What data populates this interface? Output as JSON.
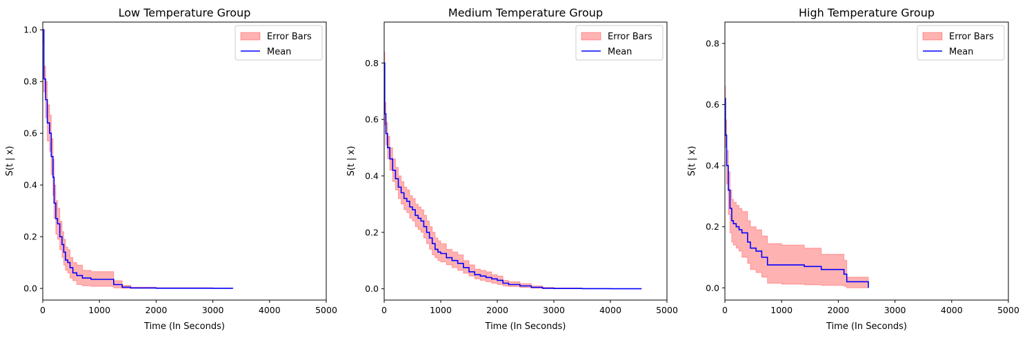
{
  "chart_data": [
    {
      "type": "line",
      "title": "Low Temperature Group",
      "xlabel": "Time (In Seconds)",
      "ylabel": "S(t | x)",
      "xlim": [
        0,
        5000
      ],
      "ylim": [
        -0.045,
        1.03
      ],
      "xticks": [
        0,
        1000,
        2000,
        3000,
        4000,
        5000
      ],
      "yticks": [
        0.0,
        0.2,
        0.4,
        0.6,
        0.8,
        1.0
      ],
      "grid": false,
      "legend": {
        "position": "top-right",
        "entries": [
          "Error Bars",
          "Mean"
        ]
      },
      "series": [
        {
          "name": "Mean",
          "color": "#0000ff",
          "step": true,
          "x": [
            0,
            20,
            50,
            80,
            120,
            150,
            180,
            200,
            230,
            260,
            300,
            340,
            370,
            400,
            440,
            480,
            530,
            600,
            700,
            850,
            1250,
            1400,
            1550,
            2000,
            3000,
            3350
          ],
          "y": [
            1.0,
            0.81,
            0.73,
            0.64,
            0.6,
            0.51,
            0.43,
            0.33,
            0.27,
            0.25,
            0.2,
            0.17,
            0.14,
            0.11,
            0.1,
            0.08,
            0.06,
            0.05,
            0.04,
            0.035,
            0.015,
            0.005,
            0.002,
            0.001,
            0.0005,
            0.0
          ]
        },
        {
          "name": "Error Bars",
          "color": "#ff0000",
          "alpha": 0.3,
          "band": true,
          "x": [
            0,
            20,
            50,
            80,
            120,
            150,
            180,
            200,
            230,
            260,
            300,
            340,
            370,
            400,
            440,
            480,
            530,
            600,
            700,
            850,
            1250,
            1400,
            1550,
            2000,
            3000,
            3350
          ],
          "lower": [
            0.95,
            0.76,
            0.66,
            0.57,
            0.53,
            0.44,
            0.36,
            0.27,
            0.21,
            0.19,
            0.15,
            0.12,
            0.09,
            0.07,
            0.06,
            0.04,
            0.03,
            0.015,
            0.01,
            0.008,
            0.002,
            0.0,
            0.0,
            0.0,
            0.0,
            0.0
          ],
          "upper": [
            1.0,
            0.86,
            0.8,
            0.71,
            0.67,
            0.58,
            0.5,
            0.4,
            0.34,
            0.31,
            0.26,
            0.22,
            0.19,
            0.16,
            0.15,
            0.12,
            0.1,
            0.09,
            0.07,
            0.065,
            0.03,
            0.012,
            0.005,
            0.003,
            0.001,
            0.0
          ]
        }
      ]
    },
    {
      "type": "line",
      "title": "Medium Temperature Group",
      "xlabel": "Time (In Seconds)",
      "ylabel": "S(t | x)",
      "xlim": [
        0,
        5000
      ],
      "ylim": [
        -0.04,
        0.945
      ],
      "xticks": [
        0,
        1000,
        2000,
        3000,
        4000,
        5000
      ],
      "yticks": [
        0.0,
        0.2,
        0.4,
        0.6,
        0.8
      ],
      "grid": false,
      "legend": {
        "position": "top-right",
        "entries": [
          "Error Bars",
          "Mean"
        ]
      },
      "series": [
        {
          "name": "Mean",
          "color": "#0000ff",
          "step": true,
          "x": [
            0,
            10,
            30,
            60,
            100,
            150,
            200,
            250,
            300,
            350,
            400,
            450,
            500,
            550,
            600,
            650,
            700,
            750,
            800,
            850,
            900,
            950,
            1000,
            1100,
            1200,
            1300,
            1400,
            1500,
            1600,
            1700,
            1800,
            1900,
            2000,
            2100,
            2200,
            2400,
            2600,
            2800,
            3000,
            3500,
            4000,
            4550
          ],
          "y": [
            0.8,
            0.62,
            0.55,
            0.5,
            0.46,
            0.42,
            0.39,
            0.36,
            0.34,
            0.32,
            0.31,
            0.29,
            0.28,
            0.26,
            0.25,
            0.24,
            0.22,
            0.2,
            0.18,
            0.16,
            0.14,
            0.13,
            0.125,
            0.11,
            0.1,
            0.09,
            0.075,
            0.06,
            0.05,
            0.045,
            0.04,
            0.035,
            0.03,
            0.02,
            0.015,
            0.01,
            0.005,
            0.002,
            0.001,
            0.0005,
            0.0002,
            0.0
          ]
        },
        {
          "name": "Error Bars",
          "color": "#ff0000",
          "alpha": 0.3,
          "band": true,
          "x": [
            0,
            10,
            30,
            60,
            100,
            150,
            200,
            250,
            300,
            350,
            400,
            450,
            500,
            550,
            600,
            650,
            700,
            750,
            800,
            850,
            900,
            950,
            1000,
            1100,
            1200,
            1300,
            1400,
            1500,
            1600,
            1700,
            1800,
            1900,
            2000,
            2100,
            2200,
            2400,
            2600,
            2800,
            3000,
            3500,
            4000,
            4550
          ],
          "lower": [
            0.76,
            0.58,
            0.51,
            0.46,
            0.42,
            0.38,
            0.35,
            0.32,
            0.3,
            0.28,
            0.27,
            0.25,
            0.24,
            0.22,
            0.21,
            0.2,
            0.18,
            0.16,
            0.14,
            0.12,
            0.11,
            0.1,
            0.095,
            0.085,
            0.075,
            0.065,
            0.055,
            0.045,
            0.035,
            0.03,
            0.025,
            0.02,
            0.015,
            0.01,
            0.008,
            0.005,
            0.002,
            0.0,
            0.0,
            0.0,
            0.0,
            0.0
          ]
        },
        {
          "name": "_upper",
          "band_upper": true,
          "upper": [
            0.84,
            0.66,
            0.59,
            0.54,
            0.5,
            0.46,
            0.43,
            0.4,
            0.38,
            0.36,
            0.35,
            0.33,
            0.32,
            0.3,
            0.29,
            0.28,
            0.26,
            0.24,
            0.22,
            0.2,
            0.18,
            0.17,
            0.16,
            0.14,
            0.13,
            0.12,
            0.1,
            0.085,
            0.07,
            0.065,
            0.06,
            0.05,
            0.045,
            0.03,
            0.025,
            0.018,
            0.01,
            0.005,
            0.003,
            0.001,
            0.0005,
            0.0
          ]
        }
      ]
    },
    {
      "type": "line",
      "title": "High Temperature Group",
      "xlabel": "Time (In Seconds)",
      "ylabel": "S(t | x)",
      "xlim": [
        0,
        5000
      ],
      "ylim": [
        -0.04,
        0.87
      ],
      "xticks": [
        0,
        1000,
        2000,
        3000,
        4000,
        5000
      ],
      "yticks": [
        0.0,
        0.2,
        0.4,
        0.6,
        0.8
      ],
      "grid": false,
      "legend": {
        "position": "top-right",
        "entries": [
          "Error Bars",
          "Mean"
        ]
      },
      "series": [
        {
          "name": "Mean",
          "color": "#0000ff",
          "step": true,
          "x": [
            0,
            10,
            30,
            60,
            90,
            120,
            150,
            200,
            250,
            300,
            400,
            450,
            550,
            650,
            750,
            1000,
            1400,
            1700,
            2100,
            2150,
            2520,
            2530
          ],
          "y": [
            0.62,
            0.5,
            0.4,
            0.32,
            0.26,
            0.22,
            0.21,
            0.2,
            0.19,
            0.18,
            0.15,
            0.13,
            0.12,
            0.1,
            0.075,
            0.075,
            0.07,
            0.06,
            0.045,
            0.02,
            0.02,
            0.0
          ]
        },
        {
          "name": "Error Bars",
          "color": "#ff0000",
          "alpha": 0.3,
          "band": true,
          "x": [
            0,
            10,
            30,
            60,
            90,
            120,
            150,
            200,
            250,
            300,
            400,
            450,
            550,
            650,
            750,
            1000,
            1400,
            1700,
            2100,
            2150,
            2520,
            2530
          ],
          "lower": [
            0.58,
            0.46,
            0.34,
            0.24,
            0.18,
            0.15,
            0.14,
            0.13,
            0.12,
            0.1,
            0.08,
            0.06,
            0.05,
            0.035,
            0.015,
            0.012,
            0.01,
            0.008,
            0.005,
            0.0,
            0.0,
            0.0
          ],
          "upper": [
            0.66,
            0.55,
            0.45,
            0.38,
            0.32,
            0.29,
            0.28,
            0.27,
            0.26,
            0.25,
            0.22,
            0.2,
            0.19,
            0.17,
            0.145,
            0.14,
            0.13,
            0.11,
            0.09,
            0.035,
            0.035,
            0.0
          ]
        }
      ]
    }
  ]
}
